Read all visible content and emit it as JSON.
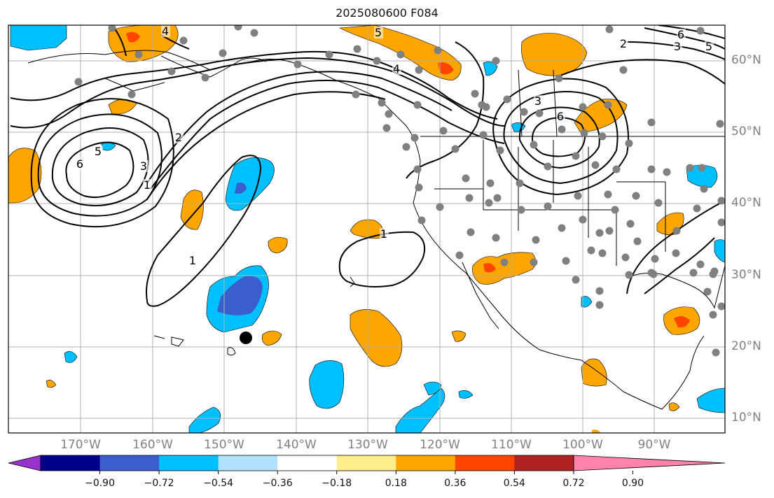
{
  "title": "2025080600 F084",
  "lon_labels": [
    "170°W",
    "160°W",
    "150°W",
    "140°W",
    "130°W",
    "120°W",
    "110°W",
    "100°W",
    "90°W"
  ],
  "lat_labels": [
    "60°N",
    "50°N",
    "40°N",
    "30°N",
    "20°N",
    "10°N"
  ],
  "colorbar": {
    "tick_labels": [
      "−0.90",
      "−0.72",
      "−0.54",
      "−0.36",
      "−0.18",
      "0.18",
      "0.36",
      "0.54",
      "0.72",
      "0.90"
    ],
    "colors": [
      "#9932cc",
      "#00008b",
      "#3a5fcd",
      "#00bfff",
      "#b0e2ff",
      "#ffffff",
      "#ffec8b",
      "#ffa500",
      "#ff4500",
      "#b22222",
      "#ff82ab"
    ]
  },
  "contour_labels": [
    "1",
    "1",
    "1",
    "2",
    "2",
    "3",
    "3",
    "3",
    "4",
    "4",
    "5",
    "5",
    "5",
    "6",
    "6",
    "6"
  ],
  "colors": {
    "land_outline": "#000000",
    "grid": "#b0b0b0",
    "station_dots": "#808080",
    "marker": "#000000"
  }
}
